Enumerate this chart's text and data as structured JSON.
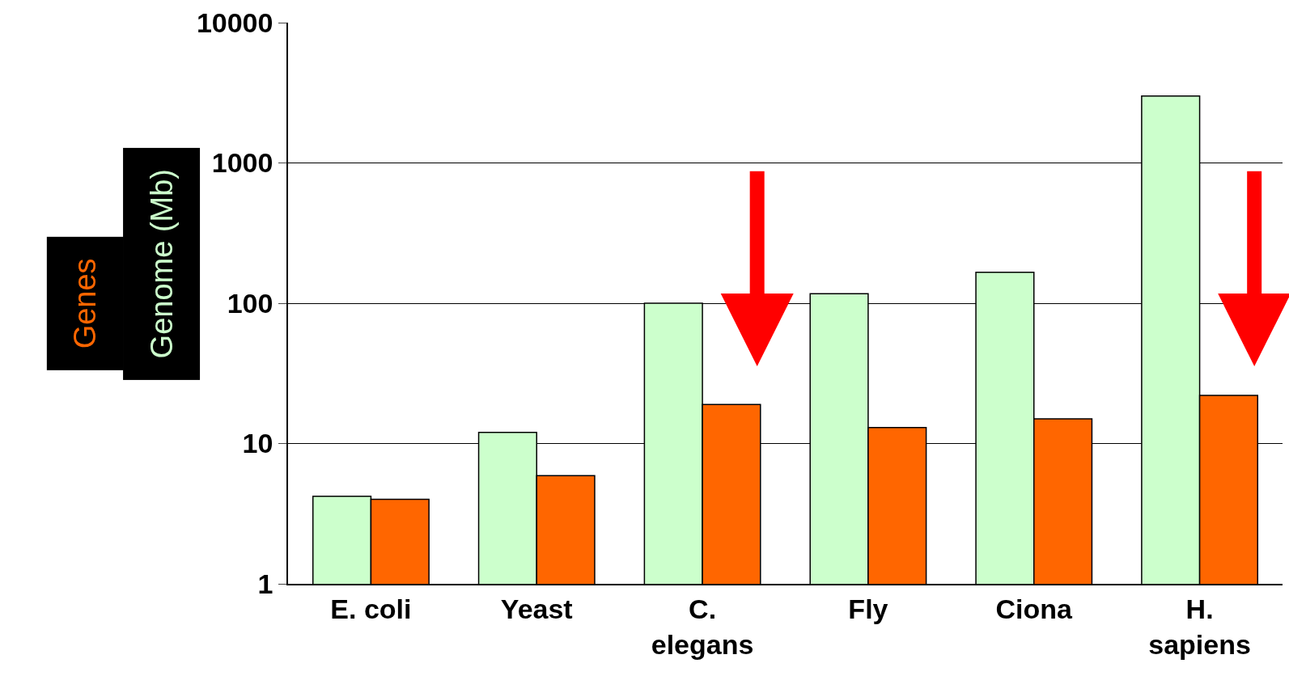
{
  "chart_data": {
    "type": "bar",
    "categories": [
      "E. coli",
      "Yeast",
      "C. elegans",
      "Fly",
      "Ciona",
      "H. sapiens"
    ],
    "series": [
      {
        "name": "Genome (Mb)",
        "color": "#ccffcc",
        "values": [
          4.2,
          12,
          100,
          117,
          166,
          3000
        ]
      },
      {
        "name": "Genes",
        "color": "#ff6600",
        "values": [
          4.0,
          5.9,
          19,
          13,
          15,
          22
        ]
      }
    ],
    "log": "y",
    "ylim": [
      1,
      10000
    ],
    "yticks": [
      1,
      10,
      100,
      1000,
      10000
    ],
    "grid": "y",
    "legend": false
  }
}
